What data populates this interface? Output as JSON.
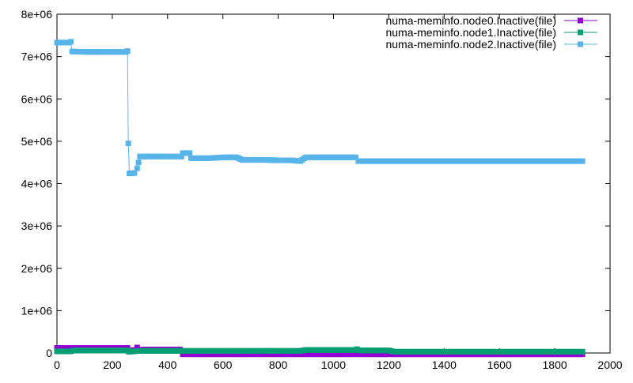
{
  "chart_data": {
    "type": "line",
    "title": "",
    "xlabel": "",
    "ylabel": "",
    "xlim": [
      0,
      2000
    ],
    "ylim": [
      0,
      8000000
    ],
    "x_ticks": [
      0,
      200,
      400,
      600,
      800,
      1000,
      1200,
      1400,
      1600,
      1800,
      2000
    ],
    "y_ticks": [
      0,
      1000000,
      2000000,
      3000000,
      4000000,
      5000000,
      6000000,
      7000000,
      8000000
    ],
    "x_tick_labels": [
      "0",
      "200",
      "400",
      "600",
      "800",
      "1000",
      "1200",
      "1400",
      "1600",
      "1800",
      "2000"
    ],
    "y_tick_labels": [
      "0",
      "1e+06",
      "2e+06",
      "3e+06",
      "4e+06",
      "5e+06",
      "6e+06",
      "7e+06",
      "8e+06"
    ],
    "grid": false,
    "legend_position": "top-right",
    "series": [
      {
        "name": "numa-meminfo.node0.Inactive(file)",
        "color": "#9400d3",
        "points": [
          [
            0,
            120000
          ],
          [
            50,
            120000
          ],
          [
            100,
            120000
          ],
          [
            150,
            120000
          ],
          [
            200,
            120000
          ],
          [
            255,
            120000
          ],
          [
            260,
            50000
          ],
          [
            280,
            70000
          ],
          [
            290,
            130000
          ],
          [
            300,
            80000
          ],
          [
            350,
            80000
          ],
          [
            400,
            80000
          ],
          [
            445,
            80000
          ],
          [
            455,
            -30000
          ],
          [
            500,
            -30000
          ],
          [
            600,
            -30000
          ],
          [
            700,
            -30000
          ],
          [
            800,
            -30000
          ],
          [
            900,
            -30000
          ],
          [
            1000,
            -30000
          ],
          [
            1100,
            -30000
          ],
          [
            1200,
            -30000
          ],
          [
            1300,
            -30000
          ],
          [
            1400,
            -30000
          ],
          [
            1500,
            -30000
          ],
          [
            1600,
            -30000
          ],
          [
            1700,
            -30000
          ],
          [
            1800,
            -30000
          ],
          [
            1900,
            -30000
          ]
        ]
      },
      {
        "name": "numa-meminfo.node1.Inactive(file)",
        "color": "#009e73",
        "points": [
          [
            0,
            40000
          ],
          [
            50,
            40000
          ],
          [
            60,
            60000
          ],
          [
            100,
            60000
          ],
          [
            200,
            60000
          ],
          [
            255,
            60000
          ],
          [
            260,
            30000
          ],
          [
            300,
            50000
          ],
          [
            400,
            50000
          ],
          [
            450,
            50000
          ],
          [
            500,
            50000
          ],
          [
            600,
            50000
          ],
          [
            700,
            50000
          ],
          [
            800,
            50000
          ],
          [
            880,
            50000
          ],
          [
            900,
            70000
          ],
          [
            1000,
            70000
          ],
          [
            1080,
            70000
          ],
          [
            1085,
            90000
          ],
          [
            1095,
            60000
          ],
          [
            1200,
            60000
          ],
          [
            1220,
            30000
          ],
          [
            1300,
            30000
          ],
          [
            1400,
            30000
          ],
          [
            1500,
            30000
          ],
          [
            1600,
            30000
          ],
          [
            1700,
            30000
          ],
          [
            1800,
            30000
          ],
          [
            1900,
            30000
          ]
        ]
      },
      {
        "name": "numa-meminfo.node2.Inactive(file)",
        "color": "#56b4e9",
        "points": [
          [
            0,
            7330000
          ],
          [
            20,
            7330000
          ],
          [
            40,
            7330000
          ],
          [
            50,
            7350000
          ],
          [
            55,
            7120000
          ],
          [
            100,
            7110000
          ],
          [
            150,
            7110000
          ],
          [
            200,
            7110000
          ],
          [
            250,
            7110000
          ],
          [
            255,
            7130000
          ],
          [
            258,
            4950000
          ],
          [
            262,
            4240000
          ],
          [
            280,
            4250000
          ],
          [
            290,
            4360000
          ],
          [
            295,
            4500000
          ],
          [
            300,
            4640000
          ],
          [
            350,
            4640000
          ],
          [
            400,
            4640000
          ],
          [
            450,
            4640000
          ],
          [
            455,
            4720000
          ],
          [
            480,
            4720000
          ],
          [
            485,
            4600000
          ],
          [
            550,
            4600000
          ],
          [
            600,
            4620000
          ],
          [
            650,
            4620000
          ],
          [
            670,
            4560000
          ],
          [
            750,
            4560000
          ],
          [
            800,
            4550000
          ],
          [
            850,
            4550000
          ],
          [
            880,
            4530000
          ],
          [
            900,
            4620000
          ],
          [
            1000,
            4620000
          ],
          [
            1080,
            4620000
          ],
          [
            1090,
            4530000
          ],
          [
            1200,
            4530000
          ],
          [
            1300,
            4530000
          ],
          [
            1400,
            4530000
          ],
          [
            1500,
            4530000
          ],
          [
            1600,
            4530000
          ],
          [
            1700,
            4530000
          ],
          [
            1800,
            4530000
          ],
          [
            1900,
            4530000
          ]
        ]
      }
    ]
  }
}
